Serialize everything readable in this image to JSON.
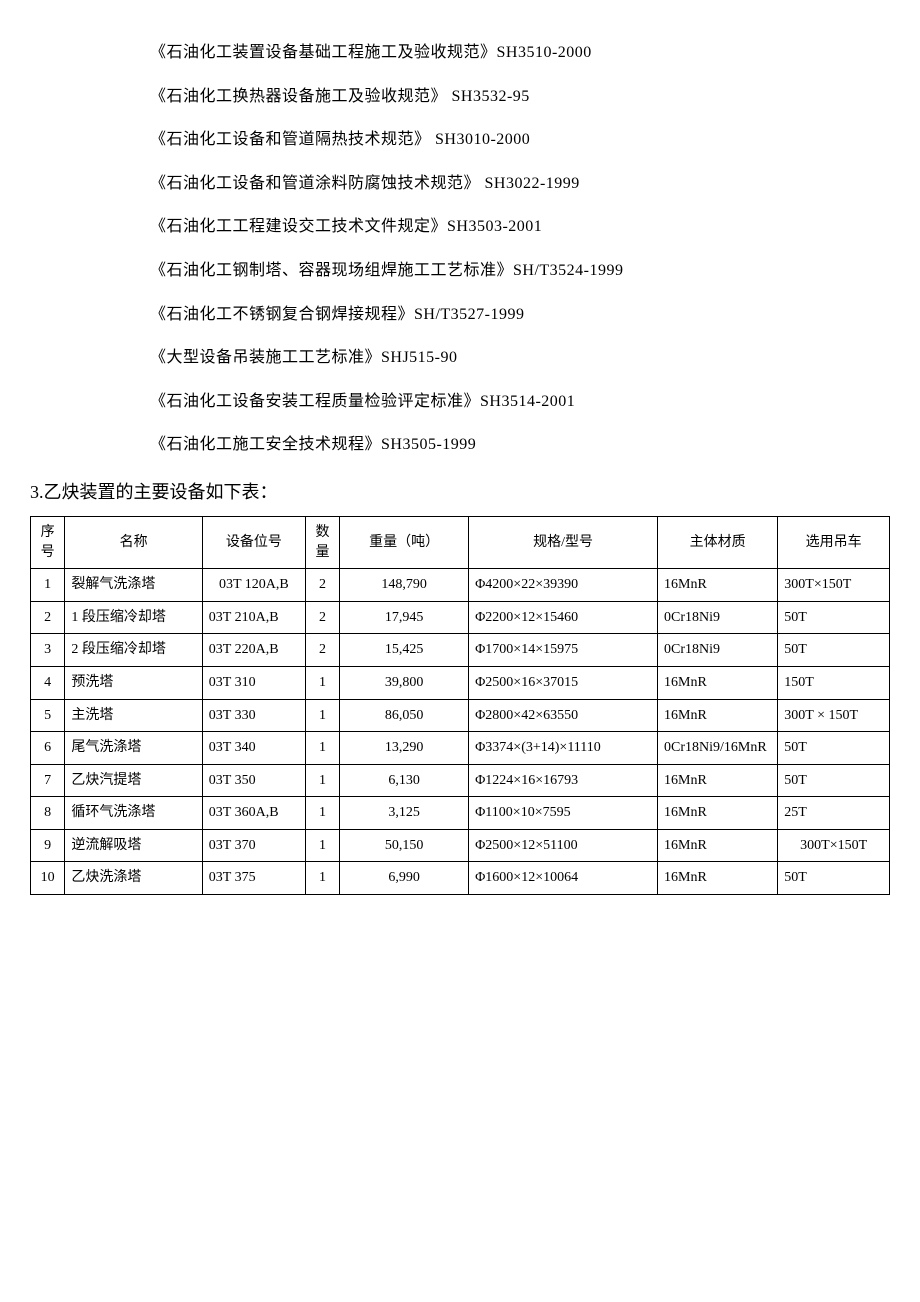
{
  "standards": [
    "《石油化工装置设备基础工程施工及验收规范》SH3510-2000",
    "《石油化工换热器设备施工及验收规范》  SH3532-95",
    "《石油化工设备和管道隔热技术规范》  SH3010-2000",
    "《石油化工设备和管道涂料防腐蚀技术规范》  SH3022-1999",
    "《石油化工工程建设交工技术文件规定》SH3503-2001",
    "《石油化工钢制塔、容器现场组焊施工工艺标准》SH/T3524-1999",
    "《石油化工不锈钢复合钢焊接规程》SH/T3527-1999",
    "《大型设备吊装施工工艺标准》SHJ515-90",
    "《石油化工设备安装工程质量检验评定标准》SH3514-2001",
    "《石油化工施工安全技术规程》SH3505-1999"
  ],
  "section_heading": "3.乙炔装置的主要设备如下表：",
  "table": {
    "headers": {
      "seq": "序号",
      "name": "名称",
      "pos": "设备位号",
      "qty": "数量",
      "weight": "重量（吨）",
      "spec": "规格/型号",
      "material": "主体材质",
      "crane": "选用吊车"
    },
    "rows": [
      {
        "seq": "1",
        "name": "裂解气洗涤塔",
        "pos": "03T 120A,B",
        "qty": "2",
        "weight": "148,790",
        "spec": "Φ4200×22×39390",
        "material": "16MnR",
        "crane": "300T×150T"
      },
      {
        "seq": "2",
        "name": "1 段压缩冷却塔",
        "pos": "03T 210A,B",
        "qty": "2",
        "weight": "17,945",
        "spec": "Φ2200×12×15460",
        "material": "0Cr18Ni9",
        "crane": "50T"
      },
      {
        "seq": "3",
        "name": "2 段压缩冷却塔",
        "pos": "03T 220A,B",
        "qty": "2",
        "weight": "15,425",
        "spec": "Φ1700×14×15975",
        "material": "0Cr18Ni9",
        "crane": "50T"
      },
      {
        "seq": "4",
        "name": "预洗塔",
        "pos": "03T 310",
        "qty": "1",
        "weight": "39,800",
        "spec": "Φ2500×16×37015",
        "material": "16MnR",
        "crane": "150T"
      },
      {
        "seq": "5",
        "name": "主洗塔",
        "pos": "03T 330",
        "qty": "1",
        "weight": "86,050",
        "spec": "Φ2800×42×63550",
        "material": "16MnR",
        "crane": "300T × 150T"
      },
      {
        "seq": "6",
        "name": "尾气洗涤塔",
        "pos": "03T 340",
        "qty": "1",
        "weight": "13,290",
        "spec": "Φ3374×(3+14)×11110",
        "material": "0Cr18Ni9/16MnR",
        "crane": "50T"
      },
      {
        "seq": "7",
        "name": "乙炔汽提塔",
        "pos": "03T 350",
        "qty": "1",
        "weight": "6,130",
        "spec": "Φ1224×16×16793",
        "material": "16MnR",
        "crane": "50T"
      },
      {
        "seq": "8",
        "name": "循环气洗涤塔",
        "pos": "03T 360A,B",
        "qty": "1",
        "weight": "3,125",
        "spec": "Φ1100×10×7595",
        "material": "16MnR",
        "crane": "25T"
      },
      {
        "seq": "9",
        "name": "逆流解吸塔",
        "pos": "03T 370",
        "qty": "1",
        "weight": "50,150",
        "spec": "Φ2500×12×51100",
        "material": "16MnR",
        "crane": "300T×150T"
      },
      {
        "seq": "10",
        "name": "乙炔洗涤塔",
        "pos": "03T 375",
        "qty": "1",
        "weight": "6,990",
        "spec": "Φ1600×12×10064",
        "material": "16MnR",
        "crane": "50T"
      }
    ]
  }
}
